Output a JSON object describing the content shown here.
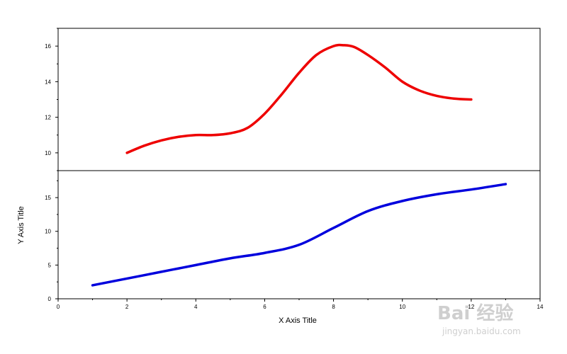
{
  "chart_data": [
    {
      "type": "line",
      "panel": "top",
      "xlim": [
        0,
        14
      ],
      "ylim": [
        9,
        17
      ],
      "ytick_labels": [
        "10",
        "12",
        "14",
        "16"
      ],
      "ytick_values": [
        10,
        12,
        14,
        16
      ],
      "series": [
        {
          "color": "#ee0000",
          "x": [
            2.0,
            2.5,
            3.0,
            3.5,
            4.0,
            4.5,
            5.0,
            5.5,
            6.0,
            6.5,
            7.0,
            7.5,
            8.0,
            8.3,
            8.6,
            9.0,
            9.5,
            10.0,
            10.5,
            11.0,
            11.5,
            12.0
          ],
          "y": [
            10.0,
            10.4,
            10.7,
            10.9,
            11.0,
            11.0,
            11.1,
            11.4,
            12.2,
            13.3,
            14.5,
            15.5,
            16.0,
            16.05,
            15.95,
            15.5,
            14.8,
            14.0,
            13.5,
            13.2,
            13.05,
            13.0
          ]
        }
      ]
    },
    {
      "type": "line",
      "panel": "bottom",
      "xlim": [
        0,
        14
      ],
      "ylim": [
        0,
        19
      ],
      "xlabel": "X Axis Title",
      "ylabel": "Y Axis Title",
      "xtick_labels": [
        "0",
        "2",
        "4",
        "6",
        "8",
        "10",
        "12",
        "14"
      ],
      "xtick_values": [
        0,
        2,
        4,
        6,
        8,
        10,
        12,
        14
      ],
      "ytick_labels": [
        "0",
        "5",
        "10",
        "15"
      ],
      "ytick_values": [
        0,
        5,
        10,
        15
      ],
      "series": [
        {
          "color": "#0000dd",
          "x": [
            1,
            2,
            3,
            4,
            5,
            6,
            7,
            8,
            9,
            10,
            11,
            12,
            13
          ],
          "y": [
            2.0,
            3.0,
            4.0,
            5.0,
            6.0,
            6.8,
            8.0,
            10.5,
            13.0,
            14.5,
            15.5,
            16.2,
            17.0
          ]
        }
      ]
    }
  ],
  "watermark": {
    "brand": "Bai 经验",
    "url": "jingyan.baidu.com"
  }
}
